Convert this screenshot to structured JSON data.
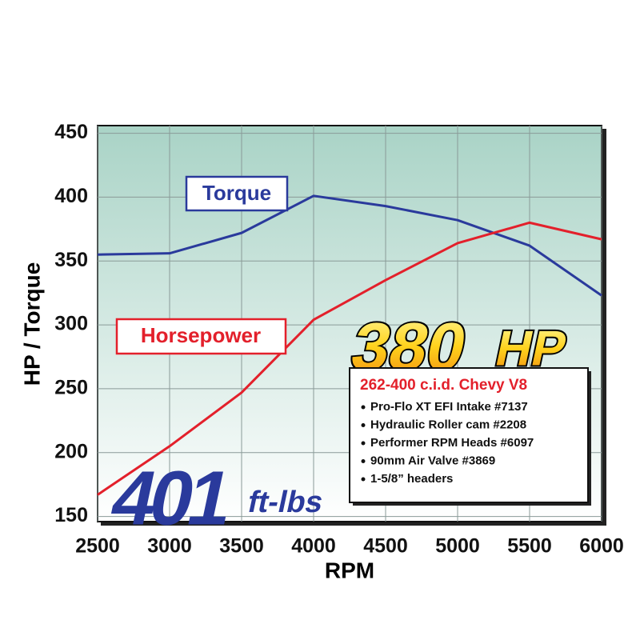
{
  "chart_data": {
    "type": "line",
    "x": [
      2500,
      3000,
      3500,
      4000,
      4500,
      5000,
      5500,
      6000
    ],
    "series": [
      {
        "name": "Torque",
        "color": "#2a3a9c",
        "values": [
          355,
          356,
          372,
          401,
          393,
          382,
          362,
          323
        ]
      },
      {
        "name": "Horsepower",
        "color": "#e3202b",
        "values": [
          167,
          205,
          247,
          304,
          335,
          364,
          380,
          367
        ]
      }
    ],
    "xlim": [
      2500,
      6000
    ],
    "xticks": [
      2500,
      3000,
      3500,
      4000,
      4500,
      5000,
      5500,
      6000
    ],
    "ylim": [
      146,
      456
    ],
    "yticks": [
      150,
      200,
      250,
      300,
      350,
      400,
      450
    ],
    "grid": true,
    "x_label": "RPM",
    "y_label": "HP / Torque",
    "hp_callout": {
      "number": "380",
      "unit": "HP"
    },
    "torque_callout": {
      "number": "401",
      "unit": "ft-lbs"
    },
    "spec_box": {
      "title": "262-400 c.i.d. Chevy V8",
      "items": [
        "Pro-Flo XT EFI Intake #7137",
        "Hydraulic Roller cam #2208",
        "Performer RPM Heads #6097",
        "90mm Air Valve #3869",
        "1-5/8” headers"
      ]
    }
  }
}
